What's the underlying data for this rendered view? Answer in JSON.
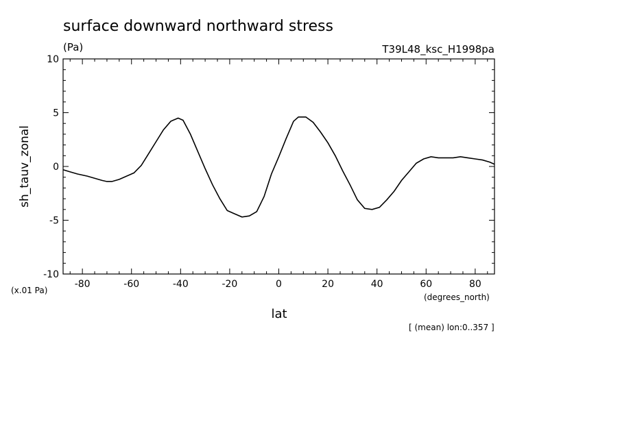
{
  "chart_data": {
    "type": "line",
    "title": "surface downward northward stress",
    "units": "(Pa)",
    "run_label": "T39L48_ksc_H1998pa",
    "ylabel": "sh_tauv_zonal",
    "xlabel": "lat",
    "x_units": "(degrees_north)",
    "y_scale_note": "(x.01 Pa)",
    "footnote": "[ (mean) lon:0..357 ]",
    "xlim": [
      -87.86,
      87.86
    ],
    "ylim": [
      -10,
      10
    ],
    "x_major_ticks": [
      -80,
      -60,
      -40,
      -20,
      0,
      20,
      40,
      60,
      80
    ],
    "x_tick_labels": [
      "-80",
      "-60",
      "-40",
      "-20",
      "0",
      "20",
      "40",
      "60",
      "80"
    ],
    "x_minor_step": 5,
    "y_major_ticks": [
      -10,
      -5,
      0,
      5,
      10
    ],
    "y_tick_labels": [
      "-10",
      "-5",
      "0",
      "5",
      "10"
    ],
    "y_minor_step": 1,
    "grid": false,
    "line_color": "#000000",
    "x": [
      -87.9,
      -85,
      -82,
      -78,
      -75,
      -72,
      -70,
      -68,
      -65,
      -62,
      -59,
      -56,
      -53,
      -50,
      -47,
      -44,
      -41,
      -39,
      -36,
      -33,
      -30,
      -27,
      -24,
      -21,
      -18,
      -15,
      -12,
      -9,
      -6,
      -3,
      0,
      3,
      6,
      8,
      11,
      14,
      17,
      20,
      23,
      26,
      29,
      32,
      35,
      38,
      41,
      44,
      47,
      50,
      53,
      56,
      59,
      62,
      65,
      68,
      71,
      74,
      77,
      80,
      83,
      86,
      87.9
    ],
    "values": [
      -0.3,
      -0.5,
      -0.7,
      -0.9,
      -1.1,
      -1.3,
      -1.4,
      -1.4,
      -1.2,
      -0.9,
      -0.6,
      0.1,
      1.2,
      2.3,
      3.4,
      4.2,
      4.5,
      4.3,
      3.0,
      1.4,
      -0.2,
      -1.7,
      -3.0,
      -4.1,
      -4.4,
      -4.7,
      -4.6,
      -4.2,
      -2.8,
      -0.7,
      0.9,
      2.6,
      4.2,
      4.6,
      4.6,
      4.1,
      3.2,
      2.2,
      1.0,
      -0.4,
      -1.7,
      -3.1,
      -3.9,
      -4.0,
      -3.8,
      -3.1,
      -2.3,
      -1.3,
      -0.5,
      0.3,
      0.7,
      0.9,
      0.8,
      0.8,
      0.8,
      0.9,
      0.8,
      0.7,
      0.6,
      0.4,
      0.2
    ]
  }
}
